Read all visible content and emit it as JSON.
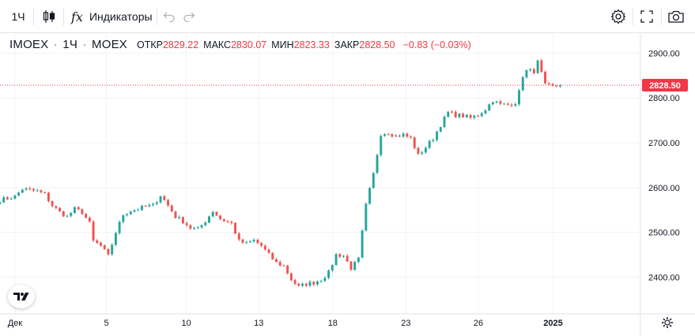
{
  "toolbar": {
    "interval_label": "1Ч",
    "indicators_label": "Индикаторы"
  },
  "legend": {
    "symbol": "IMOEX",
    "interval": "1Ч",
    "exchange": "MOEX",
    "open_label": "ОТКР",
    "open_value": "2829.22",
    "high_label": "МАКС",
    "high_value": "2830.07",
    "low_label": "МИН",
    "low_value": "2823.33",
    "close_label": "ЗАКР",
    "close_value": "2828.50",
    "change": "−0.83 (−0.03%)"
  },
  "colors": {
    "up": "#26a69a",
    "down": "#ef5350",
    "price_tag": "#f23645",
    "grid": "#f0f3fa"
  },
  "chart_data": {
    "type": "candlestick",
    "y_ticks": [
      "2900.00",
      "2800.00",
      "2700.00",
      "2600.00",
      "2500.00",
      "2400.00"
    ],
    "y_tick_values": [
      2900,
      2800,
      2700,
      2600,
      2500,
      2400
    ],
    "ylim": [
      2318,
      2943
    ],
    "x_ticks": [
      "Дек",
      "5",
      "10",
      "13",
      "18",
      "23",
      "26",
      "2025"
    ],
    "x_tick_positions": [
      4,
      28.5,
      49.9,
      69.3,
      89.1,
      108.7,
      128.1,
      148.1
    ],
    "xlim": [
      0,
      171.5
    ],
    "last_price_label": "2828.50",
    "last_price": 2828.5,
    "ohlc_anchors": [
      [
        0,
        2572
      ],
      [
        4,
        2580
      ],
      [
        6,
        2597
      ],
      [
        10,
        2592
      ],
      [
        12,
        2585
      ],
      [
        14,
        2560
      ],
      [
        16,
        2545
      ],
      [
        18,
        2535
      ],
      [
        20,
        2552
      ],
      [
        22,
        2545
      ],
      [
        24,
        2520
      ],
      [
        25,
        2480
      ],
      [
        27,
        2470
      ],
      [
        29,
        2447
      ],
      [
        31,
        2500
      ],
      [
        33,
        2540
      ],
      [
        35,
        2548
      ],
      [
        37,
        2552
      ],
      [
        39,
        2558
      ],
      [
        41,
        2560
      ],
      [
        43,
        2583
      ],
      [
        45,
        2560
      ],
      [
        47,
        2535
      ],
      [
        49,
        2525
      ],
      [
        51,
        2510
      ],
      [
        53,
        2507
      ],
      [
        55,
        2525
      ],
      [
        57,
        2548
      ],
      [
        59,
        2530
      ],
      [
        62,
        2520
      ],
      [
        64,
        2480
      ],
      [
        66,
        2475
      ],
      [
        68,
        2482
      ],
      [
        70,
        2470
      ],
      [
        72,
        2450
      ],
      [
        74,
        2432
      ],
      [
        76,
        2425
      ],
      [
        78,
        2395
      ],
      [
        80,
        2378
      ],
      [
        82,
        2385
      ],
      [
        84,
        2388
      ],
      [
        86,
        2395
      ],
      [
        88,
        2410
      ],
      [
        90,
        2450
      ],
      [
        92,
        2448
      ],
      [
        94,
        2420
      ],
      [
        96,
        2440
      ],
      [
        98,
        2560
      ],
      [
        100,
        2630
      ],
      [
        102,
        2720
      ],
      [
        104,
        2723
      ],
      [
        106,
        2715
      ],
      [
        108,
        2718
      ],
      [
        110,
        2710
      ],
      [
        112,
        2672
      ],
      [
        114,
        2690
      ],
      [
        116,
        2710
      ],
      [
        118,
        2740
      ],
      [
        120,
        2768
      ],
      [
        122,
        2762
      ],
      [
        124,
        2760
      ],
      [
        126,
        2755
      ],
      [
        128,
        2762
      ],
      [
        130,
        2775
      ],
      [
        132,
        2795
      ],
      [
        134,
        2785
      ],
      [
        136,
        2785
      ],
      [
        138,
        2790
      ],
      [
        139,
        2813
      ],
      [
        140,
        2850
      ],
      [
        141,
        2860
      ],
      [
        143,
        2860
      ],
      [
        144,
        2880
      ],
      [
        145,
        2855
      ],
      [
        146,
        2828
      ],
      [
        148,
        2825
      ],
      [
        150,
        2828.5
      ]
    ]
  }
}
